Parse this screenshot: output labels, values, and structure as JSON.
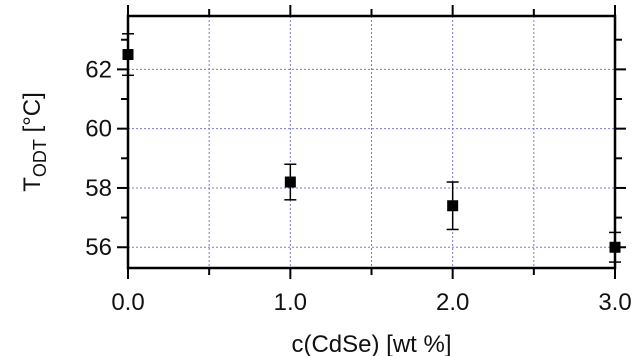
{
  "chart_data": {
    "type": "scatter",
    "title": "",
    "xlabel": "c(CdSe) [wt %]",
    "ylabel_main": "T",
    "ylabel_sub": "ODT",
    "ylabel_unit": " [°C]",
    "xlim": [
      0.0,
      3.0
    ],
    "ylim": [
      55.3,
      63.8
    ],
    "xticks": [
      0.0,
      1.0,
      2.0,
      3.0
    ],
    "xtick_labels": [
      "0.0",
      "1.0",
      "2.0",
      "3.0"
    ],
    "xticks_minor": [
      0.5,
      1.5,
      2.5
    ],
    "yticks": [
      56,
      58,
      60,
      62
    ],
    "ytick_labels": [
      "56",
      "58",
      "60",
      "62"
    ],
    "grid": true,
    "grid_style": "dotted",
    "grid_color": "#7b7bd0",
    "marker": "square",
    "marker_color": "#000000",
    "points": [
      {
        "x": 0.0,
        "y": 62.5,
        "err": 0.7
      },
      {
        "x": 1.0,
        "y": 58.2,
        "err": 0.6
      },
      {
        "x": 2.0,
        "y": 57.4,
        "err": 0.8
      },
      {
        "x": 3.0,
        "y": 56.0,
        "err": 0.5
      }
    ]
  }
}
